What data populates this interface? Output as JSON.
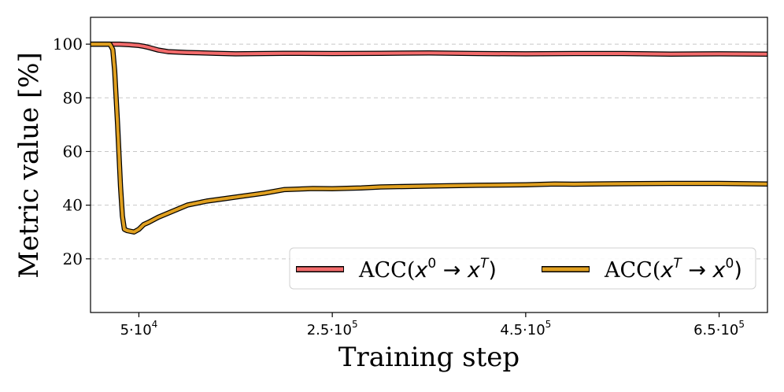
{
  "chart_data": {
    "type": "line",
    "title": "",
    "xlabel": "Training step",
    "ylabel": "Metric value [%]",
    "xlim": [
      0,
      700000
    ],
    "ylim": [
      0,
      110
    ],
    "grid": "y-dashed",
    "legend_position": "lower-right",
    "x_ticks": [
      {
        "value": 50000,
        "label": "5·10",
        "exp": "4"
      },
      {
        "value": 250000,
        "label": "2.5·10",
        "exp": "5"
      },
      {
        "value": 450000,
        "label": "4.5·10",
        "exp": "5"
      },
      {
        "value": 650000,
        "label": "6.5·10",
        "exp": "5"
      }
    ],
    "y_ticks": [
      20,
      40,
      60,
      80,
      100
    ],
    "series": [
      {
        "name": "ACC(x⁰→xᵀ)",
        "legend_base": "ACC(",
        "legend_var1": "x",
        "legend_sup1": "0",
        "legend_arrow": " → ",
        "legend_var2": "x",
        "legend_sup2": "T",
        "legend_close": ")",
        "color": "#f26b6b",
        "x": [
          0,
          20000,
          30000,
          40000,
          50000,
          55000,
          60000,
          70000,
          80000,
          100000,
          130000,
          150000,
          200000,
          250000,
          300000,
          350000,
          400000,
          450000,
          500000,
          550000,
          600000,
          650000,
          700000
        ],
        "values": [
          100,
          100,
          100,
          99.8,
          99.5,
          99.2,
          98.8,
          97.8,
          97.2,
          96.9,
          96.6,
          96.4,
          96.6,
          96.5,
          96.6,
          96.7,
          96.5,
          96.4,
          96.5,
          96.5,
          96.3,
          96.4,
          96.3
        ]
      },
      {
        "name": "ACC(xᵀ→x⁰)",
        "legend_base": "ACC(",
        "legend_var1": "x",
        "legend_sup1": "T",
        "legend_arrow": " → ",
        "legend_var2": "x",
        "legend_sup2": "0",
        "legend_close": ")",
        "color": "#e0a020",
        "x": [
          0,
          20000,
          23000,
          25000,
          28000,
          31000,
          33000,
          35000,
          38000,
          42000,
          45000,
          50000,
          55000,
          60000,
          70000,
          80000,
          100000,
          120000,
          140000,
          160000,
          180000,
          200000,
          230000,
          250000,
          280000,
          300000,
          350000,
          400000,
          450000,
          480000,
          500000,
          550000,
          600000,
          650000,
          700000
        ],
        "values": [
          100,
          100,
          98,
          90,
          70,
          47,
          36,
          31,
          30.5,
          30.2,
          30,
          31,
          32.8,
          33.6,
          35.5,
          37,
          40,
          41.5,
          42.5,
          43.5,
          44.5,
          45.8,
          46.2,
          46.1,
          46.4,
          46.8,
          47.1,
          47.4,
          47.6,
          47.9,
          47.8,
          48.0,
          48.1,
          48.1,
          47.9
        ]
      }
    ]
  }
}
